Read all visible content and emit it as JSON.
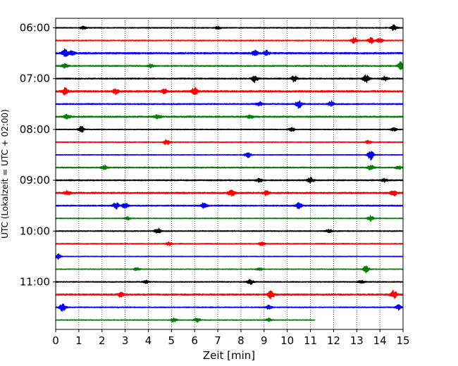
{
  "chart_data": {
    "type": "line",
    "title": "",
    "xlabel": "Zeit  [min]",
    "ylabel": "UTC (Lokalzeit = UTC + 02:00)",
    "xlim": [
      0,
      15
    ],
    "x_ticks": [
      "0",
      "1",
      "2",
      "3",
      "4",
      "5",
      "6",
      "7",
      "8",
      "9",
      "10",
      "11",
      "12",
      "13",
      "14",
      "15"
    ],
    "y_ticks": [
      "06:00",
      "07:00",
      "08:00",
      "09:00",
      "10:00",
      "11:00"
    ],
    "grid": "vertical dotted at each minute",
    "row_interval_min": 15,
    "row_colors": [
      "#000000",
      "#ff0000",
      "#0000ff",
      "#008000"
    ],
    "series": [
      {
        "start": "06:00",
        "end_min": 15,
        "amp": 0.12,
        "events": [
          [
            1.2,
            0.4
          ],
          [
            7.0,
            0.3
          ],
          [
            14.6,
            0.7
          ]
        ]
      },
      {
        "start": "06:15",
        "end_min": 15,
        "amp": 0.12,
        "events": [
          [
            12.9,
            0.8
          ],
          [
            13.6,
            0.8
          ],
          [
            14.0,
            0.6
          ]
        ]
      },
      {
        "start": "06:30",
        "end_min": 15,
        "amp": 0.2,
        "events": [
          [
            0.4,
            1.0
          ],
          [
            0.7,
            0.6
          ],
          [
            8.6,
            0.7
          ],
          [
            9.1,
            0.6
          ]
        ]
      },
      {
        "start": "06:45",
        "end_min": 15,
        "amp": 0.15,
        "events": [
          [
            0.4,
            0.5
          ],
          [
            4.1,
            0.4
          ],
          [
            14.9,
            1.0
          ]
        ]
      },
      {
        "start": "07:00",
        "end_min": 15,
        "amp": 0.15,
        "events": [
          [
            8.6,
            0.9
          ],
          [
            10.3,
            0.8
          ],
          [
            13.4,
            1.0
          ],
          [
            14.2,
            0.5
          ]
        ]
      },
      {
        "start": "07:15",
        "end_min": 15,
        "amp": 0.2,
        "events": [
          [
            0.4,
            0.9
          ],
          [
            2.6,
            0.7
          ],
          [
            4.7,
            0.6
          ],
          [
            6.0,
            1.0
          ]
        ]
      },
      {
        "start": "07:30",
        "end_min": 15,
        "amp": 0.15,
        "events": [
          [
            8.8,
            0.5
          ],
          [
            10.5,
            1.0
          ],
          [
            11.9,
            0.7
          ]
        ]
      },
      {
        "start": "07:45",
        "end_min": 15,
        "amp": 0.18,
        "events": [
          [
            0.5,
            0.6
          ],
          [
            4.4,
            0.5
          ],
          [
            8.4,
            0.4
          ]
        ]
      },
      {
        "start": "08:00",
        "end_min": 15,
        "amp": 0.1,
        "events": [
          [
            1.1,
            0.9
          ],
          [
            10.2,
            0.5
          ],
          [
            14.6,
            0.4
          ]
        ]
      },
      {
        "start": "08:15",
        "end_min": 15,
        "amp": 0.1,
        "events": [
          [
            4.8,
            0.8
          ],
          [
            13.5,
            0.4
          ]
        ]
      },
      {
        "start": "08:30",
        "end_min": 15,
        "amp": 0.08,
        "events": [
          [
            8.3,
            0.7
          ],
          [
            13.6,
            1.3
          ]
        ]
      },
      {
        "start": "08:45",
        "end_min": 15,
        "amp": 0.15,
        "events": [
          [
            2.1,
            0.5
          ],
          [
            13.6,
            0.7
          ],
          [
            14.8,
            0.4
          ]
        ]
      },
      {
        "start": "09:00",
        "end_min": 15,
        "amp": 0.15,
        "events": [
          [
            8.8,
            0.5
          ],
          [
            11.0,
            0.8
          ],
          [
            14.2,
            0.4
          ]
        ]
      },
      {
        "start": "09:15",
        "end_min": 15,
        "amp": 0.2,
        "events": [
          [
            0.5,
            0.5
          ],
          [
            7.6,
            1.0
          ],
          [
            9.1,
            0.6
          ],
          [
            14.6,
            0.7
          ]
        ]
      },
      {
        "start": "09:30",
        "end_min": 15,
        "amp": 0.15,
        "events": [
          [
            2.6,
            0.9
          ],
          [
            3.0,
            0.8
          ],
          [
            6.4,
            0.9
          ],
          [
            10.5,
            0.8
          ]
        ]
      },
      {
        "start": "09:45",
        "end_min": 15,
        "amp": 0.1,
        "events": [
          [
            3.1,
            0.4
          ],
          [
            13.6,
            0.7
          ]
        ]
      },
      {
        "start": "10:00",
        "end_min": 15,
        "amp": 0.12,
        "events": [
          [
            4.4,
            0.8
          ],
          [
            11.8,
            0.4
          ]
        ]
      },
      {
        "start": "10:15",
        "end_min": 15,
        "amp": 0.12,
        "events": [
          [
            4.9,
            0.4
          ],
          [
            8.9,
            0.5
          ]
        ]
      },
      {
        "start": "10:30",
        "end_min": 15,
        "amp": 0.08,
        "events": [
          [
            0.1,
            0.7
          ]
        ]
      },
      {
        "start": "10:45",
        "end_min": 15,
        "amp": 0.1,
        "events": [
          [
            3.5,
            0.4
          ],
          [
            8.8,
            0.4
          ],
          [
            13.4,
            0.9
          ]
        ]
      },
      {
        "start": "11:00",
        "end_min": 15,
        "amp": 0.12,
        "events": [
          [
            3.9,
            0.4
          ],
          [
            8.4,
            0.6
          ],
          [
            13.2,
            0.4
          ]
        ]
      },
      {
        "start": "11:15",
        "end_min": 15,
        "amp": 0.2,
        "events": [
          [
            2.8,
            0.5
          ],
          [
            9.3,
            1.0
          ],
          [
            14.6,
            1.0
          ]
        ]
      },
      {
        "start": "11:30",
        "end_min": 15,
        "amp": 0.12,
        "events": [
          [
            0.3,
            1.0
          ],
          [
            9.2,
            0.5
          ],
          [
            14.8,
            0.6
          ]
        ]
      },
      {
        "start": "11:45",
        "end_min": 11.2,
        "amp": 0.1,
        "events": [
          [
            5.1,
            0.5
          ],
          [
            6.1,
            0.6
          ],
          [
            9.2,
            0.4
          ]
        ]
      }
    ]
  }
}
